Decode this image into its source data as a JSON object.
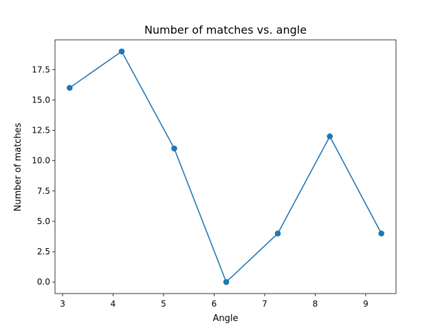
{
  "chart_data": {
    "type": "line",
    "title": "Number of matches vs. angle",
    "xlabel": "Angle",
    "ylabel": "Number of matches",
    "x": [
      3.14,
      4.17,
      5.21,
      6.24,
      7.26,
      8.29,
      9.31
    ],
    "series": [
      {
        "values": [
          16,
          19,
          11,
          0,
          4,
          12,
          4
        ],
        "color": "#1f77b4",
        "marker": "circle"
      }
    ],
    "xlim": [
      2.85,
      9.6
    ],
    "ylim": [
      -0.95,
      19.95
    ],
    "xticks": [
      3,
      4,
      5,
      6,
      7,
      8,
      9
    ],
    "xtick_labels": [
      "3",
      "4",
      "5",
      "6",
      "7",
      "8",
      "9"
    ],
    "yticks": [
      0,
      2.5,
      5,
      7.5,
      10,
      12.5,
      15,
      17.5
    ],
    "ytick_labels": [
      "0.0",
      "2.5",
      "5.0",
      "7.5",
      "10.0",
      "12.5",
      "15.0",
      "17.5"
    ],
    "grid": false,
    "legend": false
  }
}
